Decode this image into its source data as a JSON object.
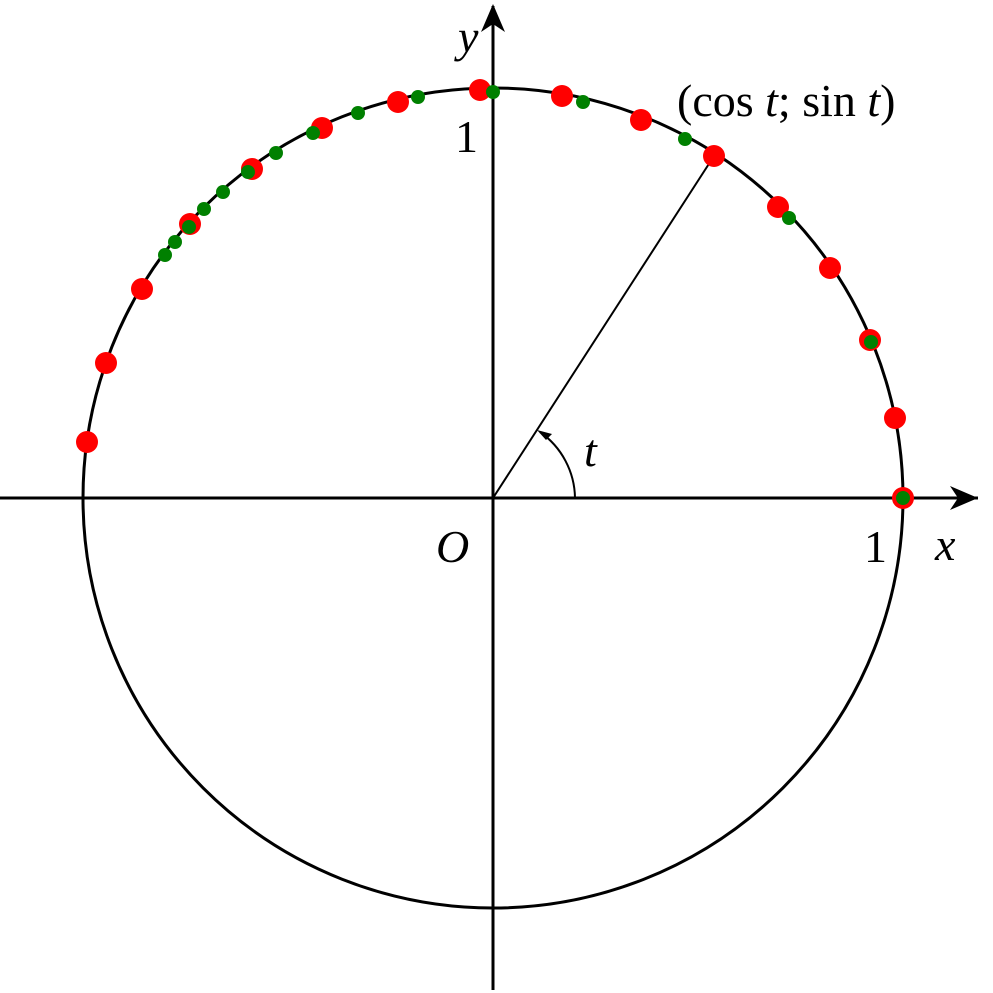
{
  "labels": {
    "x_axis": "x",
    "y_axis": "y",
    "origin": "O",
    "x_unit": "1",
    "y_unit": "1",
    "angle": "t",
    "point": {
      "open": "(cos ",
      "t1": "t",
      "sep": "; sin ",
      "t2": "t",
      "close": ")"
    }
  }
}
